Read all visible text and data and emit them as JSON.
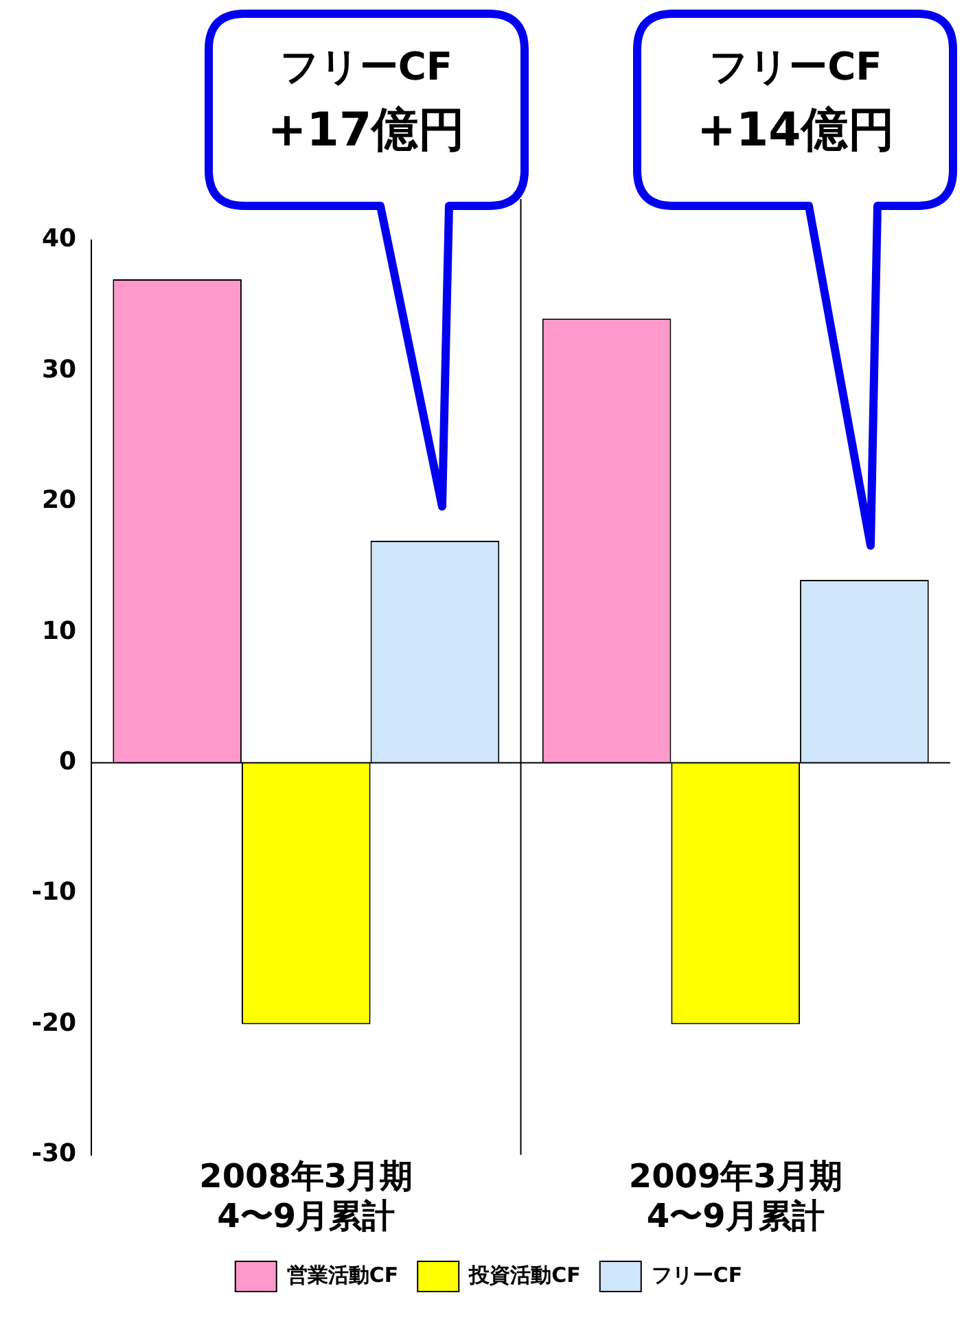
{
  "chart_data": {
    "type": "bar",
    "categories": [
      "2008年3月期\n4〜9月累計",
      "2009年3月期\n4〜9月累計"
    ],
    "series": [
      {
        "name": "営業活動CF",
        "color": "#ff99cc",
        "values": [
          37,
          34
        ]
      },
      {
        "name": "投資活動CF",
        "color": "#ffff00",
        "values": [
          -20,
          -20
        ]
      },
      {
        "name": "フリーCF",
        "color": "#cfe6fb",
        "values": [
          17,
          14
        ]
      }
    ],
    "ylim": [
      -30,
      40
    ],
    "yticks": [
      -30,
      -20,
      -10,
      0,
      10,
      20,
      30,
      40
    ],
    "legend": "bottom",
    "annotations": [
      "フリーCF\n+17億円",
      "フリーCF\n+14億円"
    ]
  }
}
